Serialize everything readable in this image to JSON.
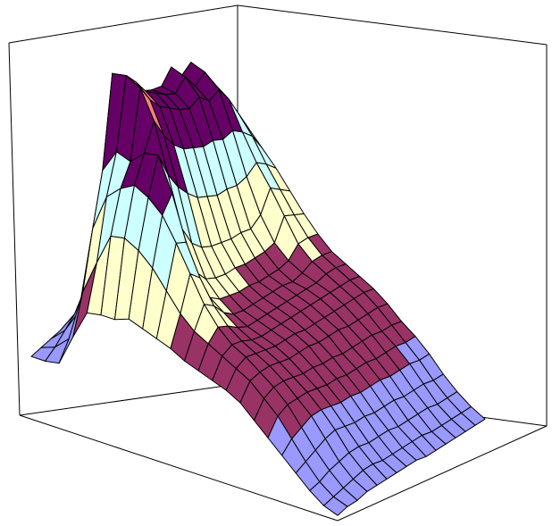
{
  "chart_data": {
    "type": "surface",
    "title": "",
    "xlabel": "",
    "ylabel": "",
    "zlabel": "",
    "legend": "none",
    "grid": false,
    "z_range": [
      0,
      1
    ],
    "bands": [
      {
        "from": 0.0,
        "to": 0.2,
        "color": "#9999ff"
      },
      {
        "from": 0.2,
        "to": 0.4,
        "color": "#993366"
      },
      {
        "from": 0.4,
        "to": 0.6,
        "color": "#ffffcc"
      },
      {
        "from": 0.6,
        "to": 0.8,
        "color": "#ccffff"
      },
      {
        "from": 0.8,
        "to": 1.0,
        "color": "#660066"
      },
      {
        "from": 1.0,
        "to": 1.2,
        "color": "#ff8080"
      }
    ],
    "line_color": "#000000",
    "frame_color": "#000000",
    "rows": 16,
    "cols": 23,
    "z": [
      [
        0.02,
        0.03,
        0.05,
        0.18,
        0.3,
        0.32,
        0.33,
        0.36,
        0.35,
        0.34,
        0.33,
        0.31,
        0.3,
        0.29,
        0.28,
        0.26,
        0.22,
        0.18,
        0.14,
        0.1,
        0.06,
        0.03,
        0.02
      ],
      [
        0.03,
        0.06,
        0.12,
        0.33,
        0.47,
        0.6,
        0.62,
        0.6,
        0.56,
        0.5,
        0.44,
        0.4,
        0.38,
        0.36,
        0.34,
        0.32,
        0.28,
        0.24,
        0.18,
        0.12,
        0.07,
        0.04,
        0.03
      ],
      [
        0.04,
        0.1,
        0.2,
        0.55,
        0.7,
        0.76,
        0.8,
        0.78,
        0.74,
        0.66,
        0.57,
        0.48,
        0.42,
        0.38,
        0.36,
        0.33,
        0.3,
        0.26,
        0.2,
        0.14,
        0.09,
        0.05,
        0.03
      ],
      [
        0.05,
        0.14,
        0.3,
        0.75,
        0.85,
        0.84,
        0.9,
        0.92,
        0.8,
        0.64,
        0.53,
        0.45,
        0.4,
        0.37,
        0.35,
        0.33,
        0.3,
        0.26,
        0.22,
        0.16,
        0.1,
        0.06,
        0.04
      ],
      [
        0.06,
        0.18,
        0.4,
        1.1,
        1.12,
        1.1,
        1.0,
        0.82,
        0.64,
        0.5,
        0.43,
        0.4,
        0.37,
        0.35,
        0.34,
        0.32,
        0.29,
        0.26,
        0.22,
        0.17,
        0.11,
        0.07,
        0.04
      ],
      [
        0.06,
        0.2,
        0.45,
        1.05,
        1.07,
        1.03,
        0.92,
        0.75,
        0.56,
        0.45,
        0.4,
        0.37,
        0.35,
        0.34,
        0.33,
        0.31,
        0.28,
        0.25,
        0.21,
        0.16,
        0.11,
        0.07,
        0.04
      ],
      [
        0.06,
        0.2,
        0.47,
        1.0,
        1.01,
        0.98,
        0.86,
        0.7,
        0.52,
        0.43,
        0.39,
        0.36,
        0.35,
        0.34,
        0.33,
        0.31,
        0.28,
        0.24,
        0.2,
        0.15,
        0.1,
        0.06,
        0.04
      ],
      [
        0.06,
        0.2,
        0.48,
        0.96,
        0.98,
        0.95,
        0.82,
        0.66,
        0.5,
        0.42,
        0.38,
        0.36,
        0.35,
        0.34,
        0.33,
        0.31,
        0.27,
        0.24,
        0.2,
        0.15,
        0.1,
        0.06,
        0.04
      ],
      [
        0.06,
        0.2,
        0.49,
        0.94,
        0.95,
        0.92,
        0.8,
        0.64,
        0.49,
        0.42,
        0.38,
        0.36,
        0.35,
        0.34,
        0.32,
        0.3,
        0.27,
        0.23,
        0.19,
        0.14,
        0.1,
        0.06,
        0.04
      ],
      [
        0.06,
        0.2,
        0.5,
        0.93,
        0.93,
        0.9,
        0.78,
        0.62,
        0.48,
        0.41,
        0.37,
        0.36,
        0.35,
        0.34,
        0.32,
        0.3,
        0.26,
        0.23,
        0.19,
        0.14,
        0.09,
        0.06,
        0.03
      ],
      [
        0.05,
        0.19,
        0.5,
        0.98,
        0.97,
        0.92,
        0.78,
        0.62,
        0.48,
        0.41,
        0.37,
        0.36,
        0.35,
        0.34,
        0.32,
        0.3,
        0.26,
        0.23,
        0.19,
        0.14,
        0.09,
        0.06,
        0.03
      ],
      [
        0.05,
        0.18,
        0.5,
        0.92,
        0.91,
        0.88,
        0.76,
        0.61,
        0.47,
        0.41,
        0.37,
        0.35,
        0.35,
        0.34,
        0.32,
        0.29,
        0.26,
        0.22,
        0.18,
        0.13,
        0.09,
        0.05,
        0.03
      ],
      [
        0.05,
        0.18,
        0.5,
        0.95,
        0.94,
        0.9,
        0.77,
        0.62,
        0.5,
        0.42,
        0.38,
        0.36,
        0.35,
        0.34,
        0.32,
        0.29,
        0.26,
        0.22,
        0.18,
        0.13,
        0.09,
        0.05,
        0.03
      ],
      [
        0.05,
        0.17,
        0.48,
        0.88,
        0.87,
        0.84,
        0.74,
        0.65,
        0.58,
        0.5,
        0.42,
        0.38,
        0.36,
        0.34,
        0.32,
        0.29,
        0.25,
        0.22,
        0.18,
        0.13,
        0.08,
        0.05,
        0.03
      ],
      [
        0.04,
        0.16,
        0.44,
        0.82,
        0.8,
        0.76,
        0.7,
        0.62,
        0.55,
        0.48,
        0.42,
        0.38,
        0.36,
        0.34,
        0.32,
        0.29,
        0.25,
        0.21,
        0.17,
        0.12,
        0.08,
        0.05,
        0.03
      ],
      [
        0.04,
        0.14,
        0.38,
        0.74,
        0.72,
        0.68,
        0.63,
        0.58,
        0.52,
        0.46,
        0.41,
        0.37,
        0.35,
        0.33,
        0.31,
        0.28,
        0.24,
        0.21,
        0.17,
        0.12,
        0.08,
        0.05,
        0.03
      ]
    ]
  }
}
